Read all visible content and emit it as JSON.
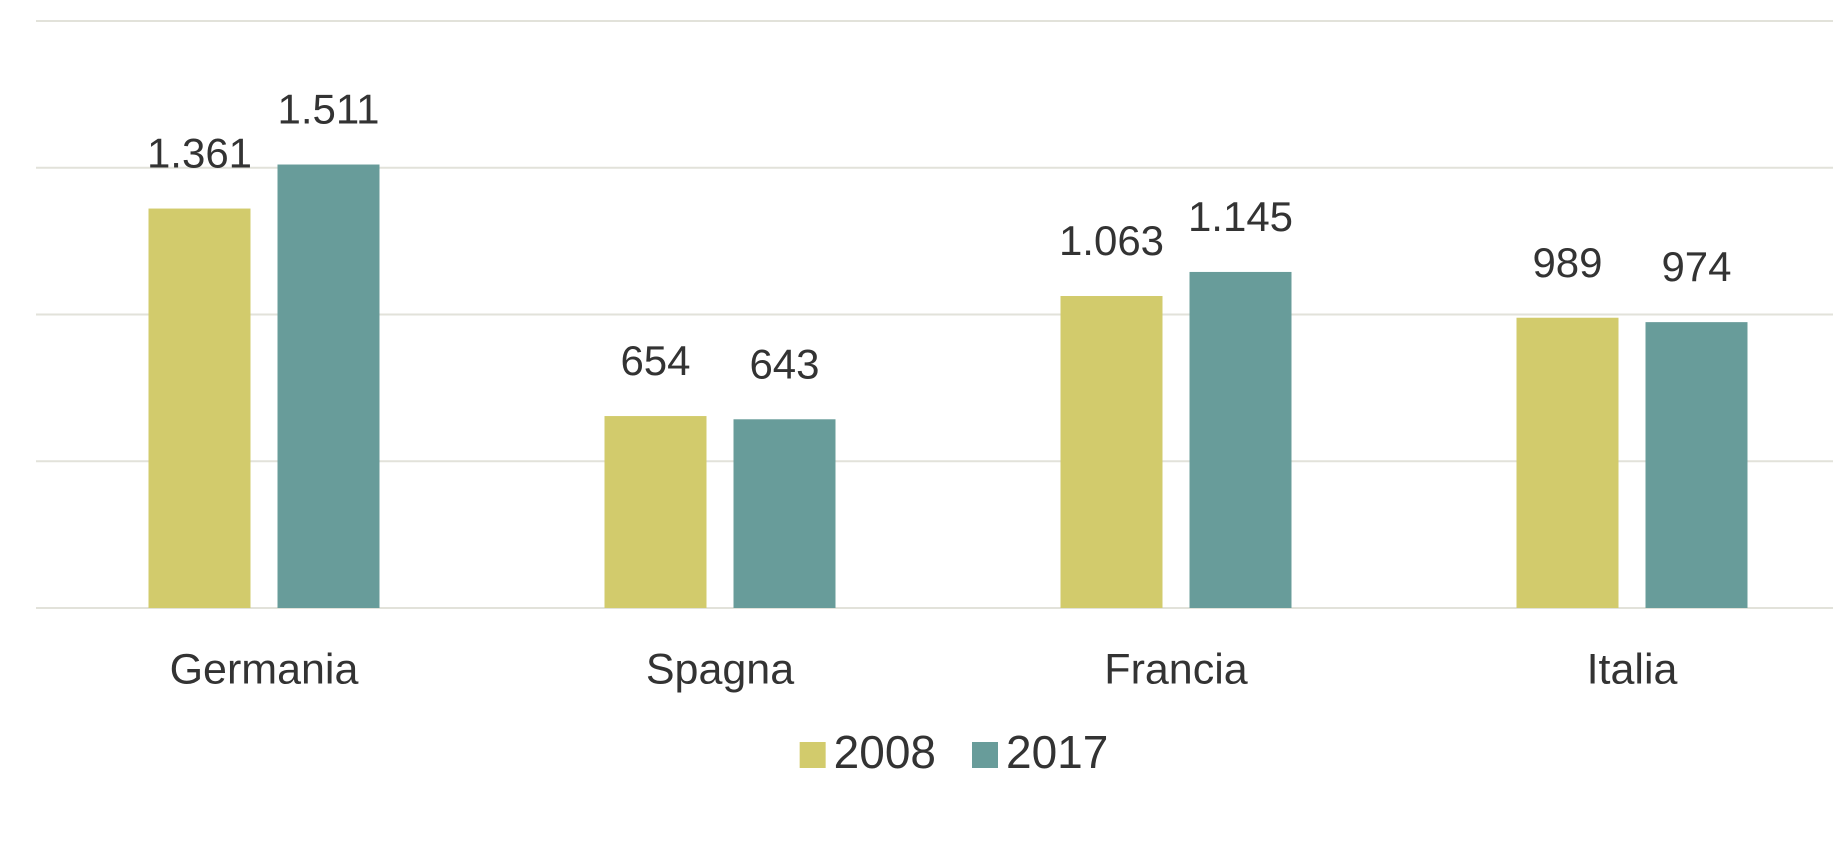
{
  "chart_data": {
    "type": "bar",
    "categories": [
      "Germania",
      "Spagna",
      "Francia",
      "Italia"
    ],
    "series": [
      {
        "name": "2008",
        "color": "#d2cb6c",
        "values": [
          1361,
          654,
          1063,
          989
        ],
        "value_labels": [
          "1.361",
          "654",
          "1.063",
          "989"
        ]
      },
      {
        "name": "2017",
        "color": "#689c9a",
        "values": [
          1511,
          643,
          1145,
          974
        ],
        "value_labels": [
          "1.511",
          "643",
          "1.145",
          "974"
        ]
      }
    ],
    "ylim": [
      0,
      2000
    ],
    "yticks": [
      0,
      500,
      1000,
      1500,
      2000
    ],
    "grid": true,
    "legend": "bottom"
  }
}
